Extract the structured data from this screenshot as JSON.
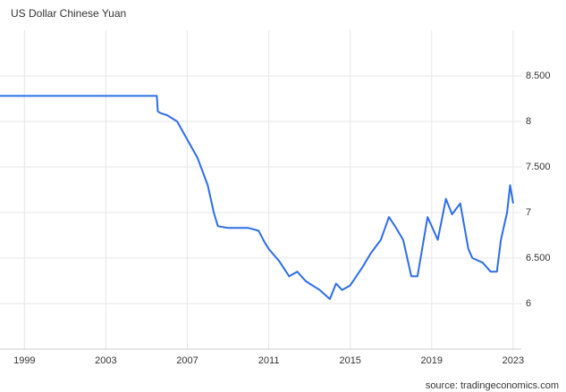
{
  "chart_data": {
    "type": "line",
    "title": "US Dollar Chinese Yuan",
    "source": "source: tradingeconomics.com",
    "x": [
      1997.8,
      2001.5,
      2005.5,
      2005.55,
      2005.7,
      2006.0,
      2006.5,
      2007.0,
      2007.5,
      2008.0,
      2008.3,
      2008.5,
      2009.0,
      2009.5,
      2010.0,
      2010.5,
      2010.8,
      2011.0,
      2011.5,
      2012.0,
      2012.4,
      2012.8,
      2013.0,
      2013.5,
      2014.0,
      2014.3,
      2014.6,
      2015.0,
      2015.6,
      2016.0,
      2016.5,
      2016.9,
      2017.2,
      2017.6,
      2018.0,
      2018.3,
      2018.8,
      2019.0,
      2019.3,
      2019.7,
      2020.0,
      2020.4,
      2020.8,
      2021.0,
      2021.5,
      2021.9,
      2022.2,
      2022.4,
      2022.7,
      2022.85,
      2023.0
    ],
    "series": [
      {
        "name": "USDCNY",
        "color": "#2d6de8",
        "values": [
          8.28,
          8.28,
          8.28,
          8.11,
          8.09,
          8.07,
          8.0,
          7.8,
          7.6,
          7.3,
          7.0,
          6.85,
          6.83,
          6.83,
          6.83,
          6.8,
          6.67,
          6.6,
          6.47,
          6.3,
          6.35,
          6.25,
          6.22,
          6.15,
          6.05,
          6.22,
          6.15,
          6.2,
          6.4,
          6.55,
          6.7,
          6.95,
          6.85,
          6.7,
          6.3,
          6.3,
          6.95,
          6.85,
          6.7,
          7.15,
          6.98,
          7.1,
          6.6,
          6.5,
          6.45,
          6.35,
          6.35,
          6.7,
          7.0,
          7.3,
          7.1
        ]
      }
    ],
    "xlim": [
      1997.8,
      2023.4
    ],
    "xticks": [
      1999,
      2003,
      2007,
      2011,
      2015,
      2019,
      2023
    ],
    "ylim": [
      5.5,
      9.0
    ],
    "yticks": [
      6,
      {
        "value": 6.5,
        "label": "6.500"
      },
      7,
      {
        "value": 7.5,
        "label": "7.500"
      },
      8,
      {
        "value": 8.5,
        "label": "8.500"
      }
    ],
    "grid": true
  }
}
